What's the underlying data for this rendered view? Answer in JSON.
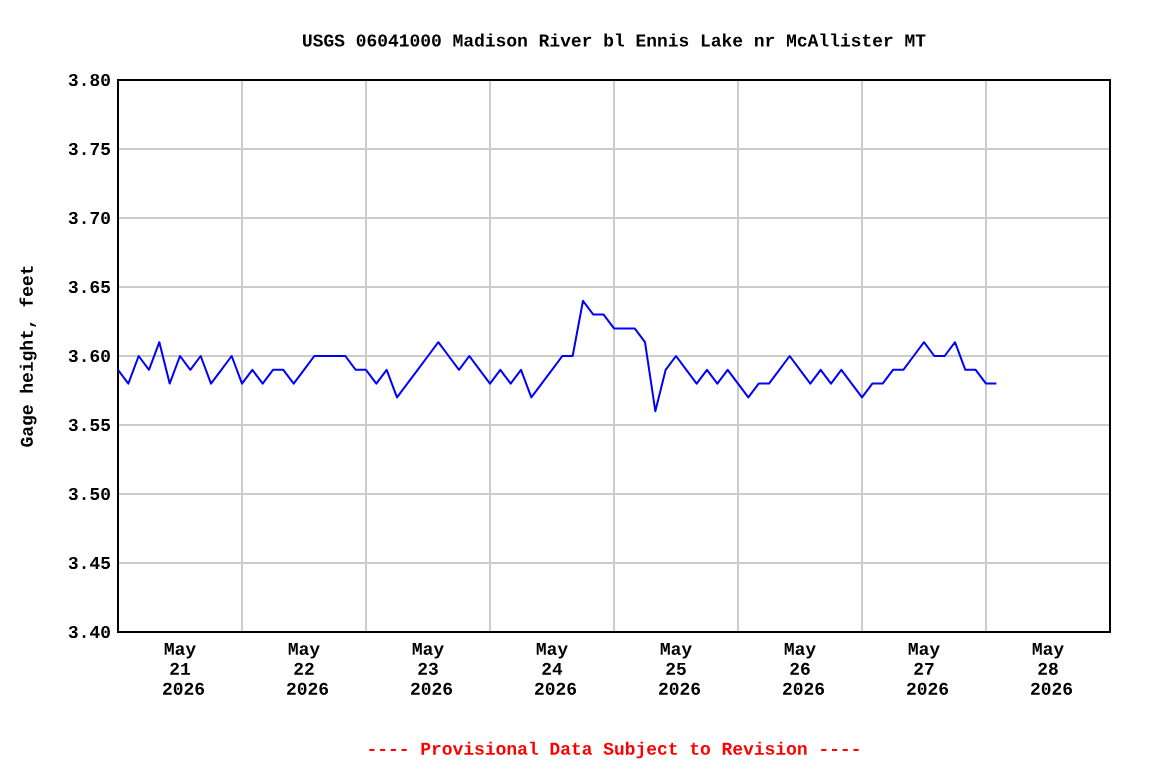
{
  "chart_data": {
    "type": "line",
    "title": "USGS 06041000 Madison River bl Ennis Lake nr McAllister MT",
    "ylabel": "Gage height, feet",
    "annotations": [
      "---- Provisional Data Subject to Revision ----"
    ],
    "xlim": [
      "2026-05-21T00:00",
      "2026-05-29T00:00"
    ],
    "xticks": [
      {
        "value": "2026-05-21T00:00",
        "label": null
      },
      {
        "value": "2026-05-21T12:00",
        "label": "May 21 2026"
      },
      {
        "value": "2026-05-22T00:00",
        "label": null
      },
      {
        "value": "2026-05-22T12:00",
        "label": "May 22 2026"
      },
      {
        "value": "2026-05-23T00:00",
        "label": null
      },
      {
        "value": "2026-05-23T12:00",
        "label": "May 23 2026"
      },
      {
        "value": "2026-05-24T00:00",
        "label": null
      },
      {
        "value": "2026-05-24T12:00",
        "label": "May 24 2026"
      },
      {
        "value": "2026-05-25T00:00",
        "label": null
      },
      {
        "value": "2026-05-25T12:00",
        "label": "May 25 2026"
      },
      {
        "value": "2026-05-26T00:00",
        "label": null
      },
      {
        "value": "2026-05-26T12:00",
        "label": "May 26 2026"
      },
      {
        "value": "2026-05-27T00:00",
        "label": null
      },
      {
        "value": "2026-05-27T12:00",
        "label": "May 27 2026"
      },
      {
        "value": "2026-05-28T00:00",
        "label": null
      },
      {
        "value": "2026-05-28T12:00",
        "label": "May 28 2026"
      },
      {
        "value": "2026-05-29T00:00",
        "label": null
      }
    ],
    "ylim": [
      3.4,
      3.8
    ],
    "yticks": [
      {
        "value": 3.4,
        "label": "3.40"
      },
      {
        "value": 3.45,
        "label": "3.45"
      },
      {
        "value": 3.5,
        "label": "3.50"
      },
      {
        "value": 3.55,
        "label": "3.55"
      },
      {
        "value": 3.6,
        "label": "3.60"
      },
      {
        "value": 3.65,
        "label": "3.65"
      },
      {
        "value": 3.7,
        "label": "3.70"
      },
      {
        "value": 3.75,
        "label": "3.75"
      },
      {
        "value": 3.8,
        "label": "3.80"
      }
    ],
    "grid": true,
    "marker": "none",
    "line_style": "solid",
    "series": [
      {
        "color": "#0000ff",
        "x": [
          "2026-05-21T00:00",
          "2026-05-21T02:00",
          "2026-05-21T04:00",
          "2026-05-21T06:00",
          "2026-05-21T08:00",
          "2026-05-21T10:00",
          "2026-05-21T12:00",
          "2026-05-21T14:00",
          "2026-05-21T16:00",
          "2026-05-21T18:00",
          "2026-05-21T20:00",
          "2026-05-21T22:00",
          "2026-05-22T00:00",
          "2026-05-22T02:00",
          "2026-05-22T04:00",
          "2026-05-22T06:00",
          "2026-05-22T08:00",
          "2026-05-22T10:00",
          "2026-05-22T12:00",
          "2026-05-22T14:00",
          "2026-05-22T16:00",
          "2026-05-22T18:00",
          "2026-05-22T20:00",
          "2026-05-22T22:00",
          "2026-05-23T00:00",
          "2026-05-23T02:00",
          "2026-05-23T04:00",
          "2026-05-23T06:00",
          "2026-05-23T08:00",
          "2026-05-23T10:00",
          "2026-05-23T12:00",
          "2026-05-23T14:00",
          "2026-05-23T16:00",
          "2026-05-23T18:00",
          "2026-05-23T20:00",
          "2026-05-23T22:00",
          "2026-05-24T00:00",
          "2026-05-24T02:00",
          "2026-05-24T04:00",
          "2026-05-24T06:00",
          "2026-05-24T08:00",
          "2026-05-24T10:00",
          "2026-05-24T12:00",
          "2026-05-24T14:00",
          "2026-05-24T16:00",
          "2026-05-24T18:00",
          "2026-05-24T20:00",
          "2026-05-24T22:00",
          "2026-05-25T00:00",
          "2026-05-25T02:00",
          "2026-05-25T04:00",
          "2026-05-25T06:00",
          "2026-05-25T08:00",
          "2026-05-25T10:00",
          "2026-05-25T12:00",
          "2026-05-25T14:00",
          "2026-05-25T16:00",
          "2026-05-25T18:00",
          "2026-05-25T20:00",
          "2026-05-25T22:00",
          "2026-05-26T00:00",
          "2026-05-26T02:00",
          "2026-05-26T04:00",
          "2026-05-26T06:00",
          "2026-05-26T08:00",
          "2026-05-26T10:00",
          "2026-05-26T12:00",
          "2026-05-26T14:00",
          "2026-05-26T16:00",
          "2026-05-26T18:00",
          "2026-05-26T20:00",
          "2026-05-26T22:00",
          "2026-05-27T00:00",
          "2026-05-27T02:00",
          "2026-05-27T04:00",
          "2026-05-27T06:00",
          "2026-05-27T08:00",
          "2026-05-27T10:00",
          "2026-05-27T12:00",
          "2026-05-27T14:00",
          "2026-05-27T16:00",
          "2026-05-27T18:00",
          "2026-05-27T20:00",
          "2026-05-27T22:00",
          "2026-05-28T00:00",
          "2026-05-28T02:00"
        ],
        "values": [
          3.59,
          3.58,
          3.6,
          3.59,
          3.61,
          3.58,
          3.6,
          3.59,
          3.6,
          3.58,
          3.59,
          3.6,
          3.58,
          3.59,
          3.58,
          3.59,
          3.59,
          3.58,
          3.59,
          3.6,
          3.6,
          3.6,
          3.6,
          3.59,
          3.59,
          3.58,
          3.59,
          3.57,
          3.58,
          3.59,
          3.6,
          3.61,
          3.6,
          3.59,
          3.6,
          3.59,
          3.58,
          3.59,
          3.58,
          3.59,
          3.57,
          3.58,
          3.59,
          3.6,
          3.6,
          3.64,
          3.63,
          3.63,
          3.62,
          3.62,
          3.62,
          3.61,
          3.56,
          3.59,
          3.6,
          3.59,
          3.58,
          3.59,
          3.58,
          3.59,
          3.58,
          3.57,
          3.58,
          3.58,
          3.59,
          3.6,
          3.59,
          3.58,
          3.59,
          3.58,
          3.59,
          3.58,
          3.57,
          3.58,
          3.58,
          3.59,
          3.59,
          3.6,
          3.61,
          3.6,
          3.6,
          3.61,
          3.59,
          3.59,
          3.58,
          3.58
        ]
      }
    ]
  }
}
